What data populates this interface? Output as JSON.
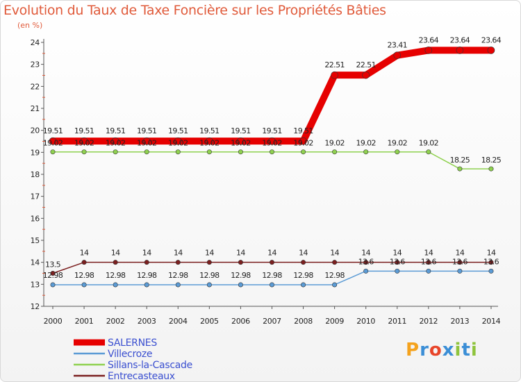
{
  "chart_data": {
    "type": "line",
    "title": "Evolution du Taux de Taxe Foncière sur les Propriétés Bâties",
    "subtitle": "(en %)",
    "xlabel": "",
    "ylabel": "",
    "x": [
      "2000",
      "2001",
      "2002",
      "2003",
      "2004",
      "2005",
      "2006",
      "2007",
      "2008",
      "2009",
      "2010",
      "2011",
      "2012",
      "2013",
      "2014"
    ],
    "ylim": [
      12,
      24
    ],
    "yticks": [
      "12",
      "13",
      "14",
      "15",
      "16",
      "17",
      "18",
      "19",
      "20",
      "21",
      "22",
      "23",
      "24"
    ],
    "grid": false,
    "legend_position": "bottom-left",
    "series": [
      {
        "name": "SALERNES",
        "color": "#e60000",
        "values": [
          19.51,
          19.51,
          19.51,
          19.51,
          19.51,
          19.51,
          19.51,
          19.51,
          19.51,
          22.51,
          22.51,
          23.41,
          23.64,
          23.64,
          23.64
        ],
        "labels": [
          "19.51",
          "19.51",
          "19.51",
          "19.51",
          "19.51",
          "19.51",
          "19.51",
          "19.51",
          "19.51",
          "22.51",
          "22.51",
          "23.41",
          "23.64",
          "23.64",
          "23.64"
        ]
      },
      {
        "name": "Villecroze",
        "color": "#5b9bd5",
        "values": [
          12.98,
          12.98,
          12.98,
          12.98,
          12.98,
          12.98,
          12.98,
          12.98,
          12.98,
          12.98,
          13.6,
          13.6,
          13.6,
          13.6,
          13.6
        ],
        "labels": [
          "12.98",
          "12.98",
          "12.98",
          "12.98",
          "12.98",
          "12.98",
          "12.98",
          "12.98",
          "12.98",
          "12.98",
          "13.6",
          "13.6",
          "13.6",
          "13.6",
          "13.6"
        ]
      },
      {
        "name": "Sillans-la-Cascade",
        "color": "#8fd14f",
        "values": [
          19.02,
          19.02,
          19.02,
          19.02,
          19.02,
          19.02,
          19.02,
          19.02,
          19.02,
          19.02,
          19.02,
          19.02,
          19.02,
          18.25,
          18.25
        ],
        "labels": [
          "19.02",
          "19.02",
          "19.02",
          "19.02",
          "19.02",
          "19.02",
          "19.02",
          "19.02",
          "19.02",
          "19.02",
          "19.02",
          "19.02",
          "19.02",
          "18.25",
          "18.25"
        ]
      },
      {
        "name": "Entrecasteaux",
        "color": "#7b1f1f",
        "values": [
          13.5,
          14,
          14,
          14,
          14,
          14,
          14,
          14,
          14,
          14,
          14,
          14,
          14,
          14,
          14
        ],
        "labels": [
          "13.5",
          "14",
          "14",
          "14",
          "14",
          "14",
          "14",
          "14",
          "14",
          "14",
          "14",
          "14",
          "14",
          "14",
          "14"
        ]
      }
    ]
  },
  "logo": {
    "text": "Proxiti",
    "letters": [
      "P",
      "r",
      "o",
      "x",
      "i",
      "t",
      "i"
    ],
    "colors": [
      "#f4a21d",
      "#3b8ed6",
      "#e8452a",
      "#3b8ed6",
      "#8fc43d",
      "#3b8ed6",
      "#8fc43d"
    ]
  }
}
